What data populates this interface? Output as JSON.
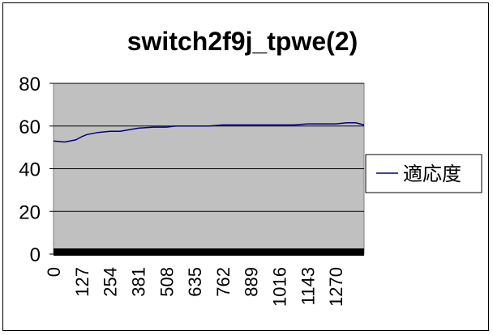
{
  "chart_data": {
    "type": "line",
    "title": "switch2f9j_tpwe(2)",
    "xlabel": "",
    "ylabel": "",
    "ylim": [
      0,
      80
    ],
    "yticks": [
      0,
      20,
      40,
      60,
      80
    ],
    "xlim": [
      0,
      1397
    ],
    "xticks": [
      0,
      127,
      254,
      381,
      508,
      635,
      762,
      889,
      1016,
      1143,
      1270
    ],
    "grid": "horizontal",
    "legend_position": "right",
    "plot_background": "#c0c0c0",
    "line_color": "#000080",
    "series": [
      {
        "name": "適応度",
        "x": [
          0,
          50,
          100,
          127,
          150,
          200,
          254,
          300,
          381,
          450,
          508,
          550,
          635,
          700,
          762,
          800,
          889,
          950,
          1016,
          1080,
          1143,
          1200,
          1270,
          1320,
          1360,
          1397
        ],
        "y": [
          53,
          52.5,
          53.5,
          55,
          56,
          57,
          57.5,
          57.5,
          59,
          59.5,
          59.5,
          60,
          60,
          60,
          60.5,
          60.5,
          60.5,
          60.5,
          60.5,
          60.5,
          61,
          61,
          61,
          61.5,
          61.5,
          60.5
        ]
      }
    ]
  }
}
